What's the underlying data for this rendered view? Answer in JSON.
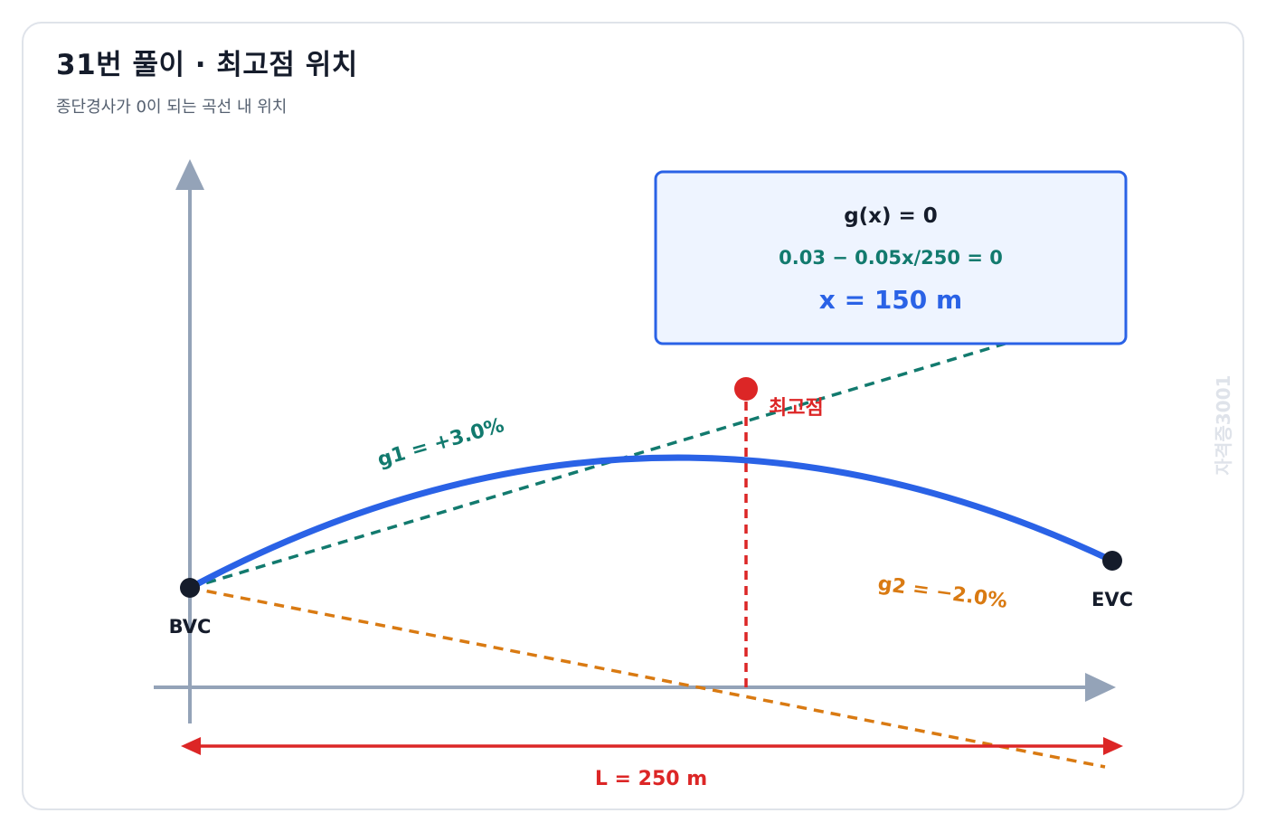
{
  "header": {
    "title": "31번 풀이 · 최고점 위치",
    "subtitle": "종단경사가 0이 되는 곡선 내 위치"
  },
  "points": {
    "start_label": "BVC",
    "end_label": "EVC",
    "peak_label": "최고점"
  },
  "gradients": {
    "g1_label": "g1 = +3.0%",
    "g2_label": "g2 = −2.0%",
    "g1_color": "#127a6e",
    "g2_color": "#d97a12"
  },
  "formula_box": {
    "line1": "g(x) = 0",
    "line2": "0.03 − 0.05x/250 = 0",
    "line3": "x = 150 m"
  },
  "length": {
    "label": "L = 250 m"
  },
  "watermark": "자격증3001",
  "colors": {
    "curve": "#2a62e6",
    "peak": "#dc2626",
    "axis": "#94a3b8",
    "box_border": "#2a62e6",
    "box_fill": "#eef4ff"
  }
}
